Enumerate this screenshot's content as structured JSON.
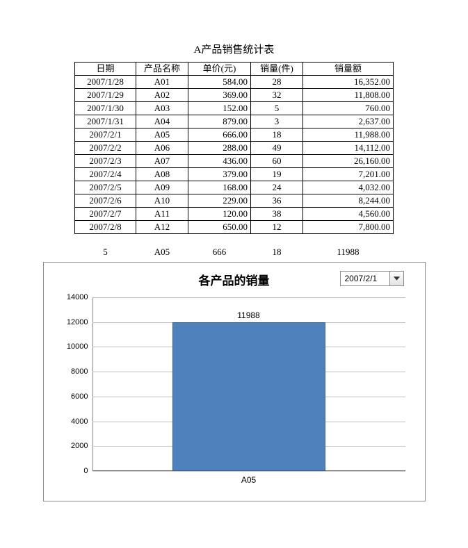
{
  "title": "A产品销售统计表",
  "table": {
    "columns": [
      "日期",
      "产品名称",
      "单价(元)",
      "销量(件)",
      "销量额"
    ],
    "rows": [
      [
        "2007/1/28",
        "A01",
        "584.00",
        "28",
        "16,352.00"
      ],
      [
        "2007/1/29",
        "A02",
        "369.00",
        "32",
        "11,808.00"
      ],
      [
        "2007/1/30",
        "A03",
        "152.00",
        "5",
        "760.00"
      ],
      [
        "2007/1/31",
        "A04",
        "879.00",
        "3",
        "2,637.00"
      ],
      [
        "2007/2/1",
        "A05",
        "666.00",
        "18",
        "11,988.00"
      ],
      [
        "2007/2/2",
        "A06",
        "288.00",
        "49",
        "14,112.00"
      ],
      [
        "2007/2/3",
        "A07",
        "436.00",
        "60",
        "26,160.00"
      ],
      [
        "2007/2/4",
        "A08",
        "379.00",
        "19",
        "7,201.00"
      ],
      [
        "2007/2/5",
        "A09",
        "168.00",
        "24",
        "4,032.00"
      ],
      [
        "2007/2/6",
        "A10",
        "229.00",
        "36",
        "8,244.00"
      ],
      [
        "2007/2/7",
        "A11",
        "120.00",
        "38",
        "4,560.00"
      ],
      [
        "2007/2/8",
        "A12",
        "650.00",
        "12",
        "7,800.00"
      ]
    ]
  },
  "selected": {
    "index": "5",
    "name": "A05",
    "price": "666",
    "qty": "18",
    "amount": "11988"
  },
  "chart": {
    "type": "bar",
    "title": "各产品的销量",
    "dropdown_value": "2007/2/1",
    "ymin": 0,
    "ymax": 14000,
    "ytick_step": 2000,
    "yticks": [
      "0",
      "2000",
      "4000",
      "6000",
      "8000",
      "10000",
      "12000",
      "14000"
    ],
    "bar": {
      "category": "A05",
      "value": 11988,
      "value_label": "11988",
      "color": "#4f81bd",
      "border_color": "#3a5f8a"
    },
    "grid_color": "#bfbfbf",
    "background": "#ffffff",
    "title_fontsize": 17,
    "label_fontsize": 11
  }
}
